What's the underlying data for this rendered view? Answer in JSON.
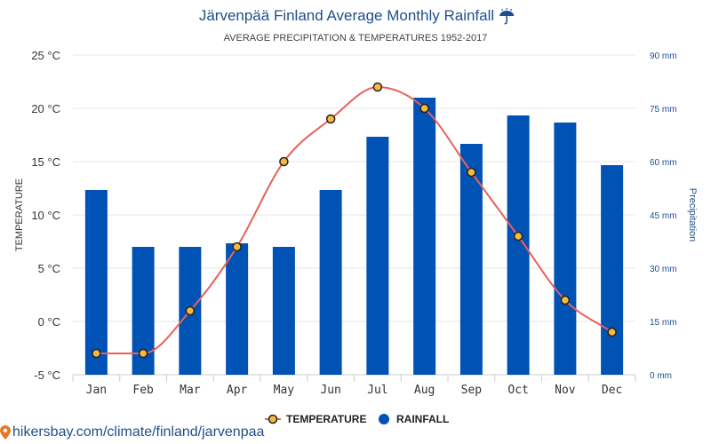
{
  "chart_data": {
    "type": "bar",
    "title": "Järvenpää Finland Average Monthly Rainfall",
    "title_icon": "umbrella-rain-icon",
    "subtitle": "AVERAGE PRECIPITATION & TEMPERATURES 1952-2017",
    "categories": [
      "Jan",
      "Feb",
      "Mar",
      "Apr",
      "May",
      "Jun",
      "Jul",
      "Aug",
      "Sep",
      "Oct",
      "Nov",
      "Dec"
    ],
    "series": [
      {
        "name": "TEMPERATURE",
        "type": "line",
        "axis": "left",
        "unit": "°C",
        "color": "#e8615a",
        "marker_fill": "#f5b942",
        "values": [
          -3,
          -3,
          1,
          7,
          15,
          19,
          22,
          20,
          14,
          8,
          2,
          -1
        ]
      },
      {
        "name": "RAINFALL",
        "type": "bar",
        "axis": "right",
        "unit": "mm",
        "color": "#0052b4",
        "values": [
          52,
          36,
          36,
          37,
          36,
          52,
          67,
          78,
          65,
          73,
          71,
          59
        ]
      }
    ],
    "ylabel_left": "TEMPERATURE",
    "ylabel_right": "Precipitation",
    "ylim_left": [
      -5,
      25
    ],
    "ylim_right": [
      0,
      90
    ],
    "yticks_left": [
      "25 °C",
      "20 °C",
      "15 °C",
      "10 °C",
      "5 °C",
      "0 °C",
      "-5 °C"
    ],
    "yticks_right": [
      "90 mm",
      "75 mm",
      "60 mm",
      "45 mm",
      "30 mm",
      "15 mm",
      "0 mm"
    ],
    "grid": true,
    "legend_position": "bottom-center"
  },
  "footer": {
    "icon": "location-pin-icon",
    "text": "hikersbay.com/climate/finland/jarvenpaa",
    "color": "#e87722"
  }
}
